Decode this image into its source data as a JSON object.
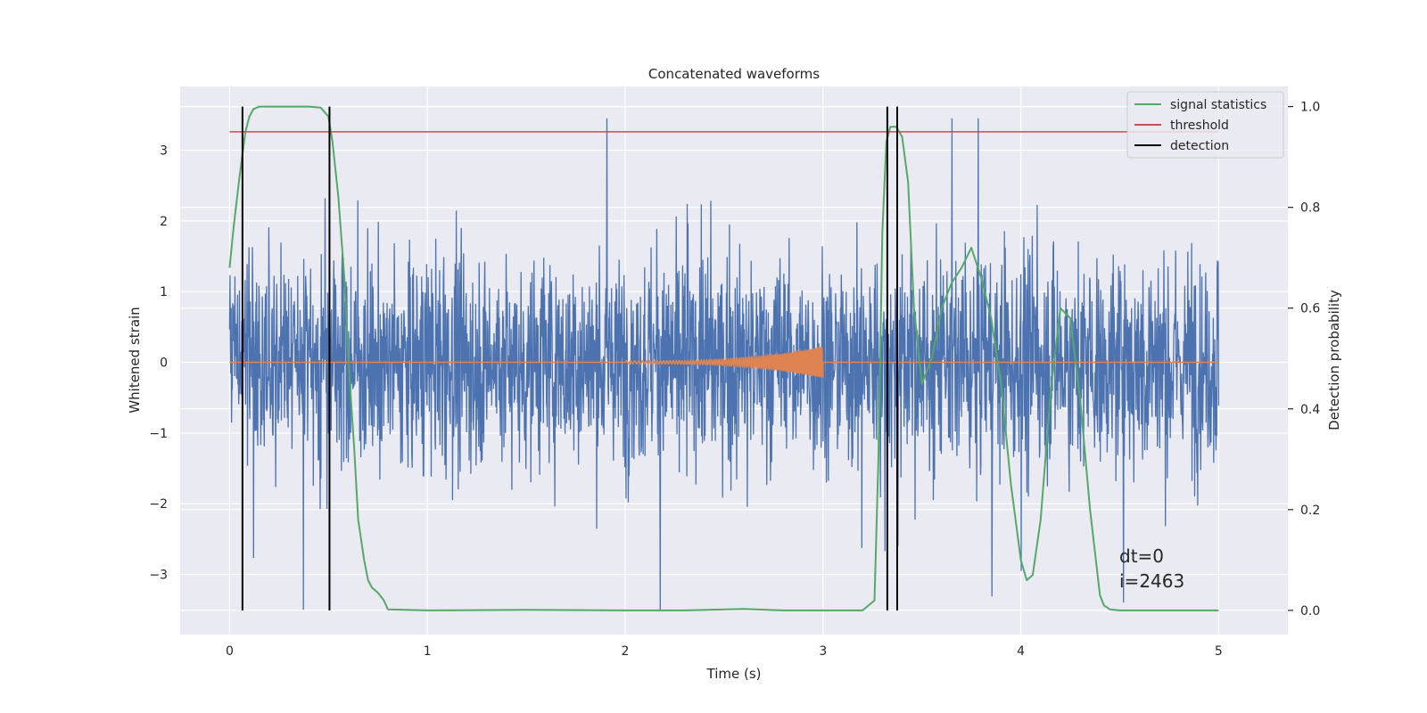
{
  "chart_data": {
    "type": "line",
    "title": "Concatenated waveforms",
    "xlabel": "Time (s)",
    "ylabel": "Whitened strain",
    "y2label": "Detection probability",
    "xlim": [
      -0.25,
      5.35
    ],
    "ylim": [
      -3.85,
      3.9
    ],
    "y2lim": [
      -0.048,
      1.04
    ],
    "xticks": [
      0,
      1,
      2,
      3,
      4,
      5
    ],
    "xtick_labels": [
      "0",
      "1",
      "2",
      "3",
      "4",
      "5"
    ],
    "yticks": [
      3,
      2,
      1,
      0,
      -1,
      -2,
      -3
    ],
    "ytick_labels": [
      "3",
      "2",
      "1",
      "0",
      "−1",
      "−2",
      "−3"
    ],
    "y2ticks": [
      1.0,
      0.8,
      0.6,
      0.4,
      0.2,
      0.0
    ],
    "y2tick_labels": [
      "1.0",
      "0.8",
      "0.6",
      "0.4",
      "0.2",
      "0.0"
    ],
    "grid": true,
    "legend_position": "top-right",
    "annotation": [
      "dt=0",
      "i=2463"
    ],
    "series": [
      {
        "id": "whitened_strain",
        "axis": "left",
        "color": "#4c72b0",
        "kind": "noise",
        "x_range": [
          0,
          5
        ],
        "std": 0.75,
        "min": -3.5,
        "max": 3.45
      },
      {
        "id": "injected_waveform",
        "axis": "left",
        "color": "#dd8452",
        "kind": "chirp",
        "x_range": [
          0,
          5
        ],
        "chirp_start": 2.0,
        "chirp_end": 3.0,
        "amplitude_start": 0.02,
        "amplitude_end": 0.22
      },
      {
        "name": "signal statistics",
        "axis": "right",
        "color": "#55a868",
        "x": [
          0.0,
          0.02,
          0.05,
          0.08,
          0.1,
          0.12,
          0.15,
          0.2,
          0.3,
          0.4,
          0.46,
          0.5,
          0.52,
          0.55,
          0.58,
          0.6,
          0.63,
          0.65,
          0.68,
          0.7,
          0.72,
          0.75,
          0.78,
          0.8,
          1.0,
          1.5,
          2.0,
          2.3,
          2.6,
          2.8,
          3.0,
          3.2,
          3.26,
          3.28,
          3.3,
          3.32,
          3.34,
          3.37,
          3.4,
          3.43,
          3.46,
          3.5,
          3.55,
          3.6,
          3.65,
          3.7,
          3.75,
          3.8,
          3.85,
          3.9,
          3.95,
          4.0,
          4.03,
          4.06,
          4.1,
          4.15,
          4.2,
          4.25,
          4.3,
          4.35,
          4.4,
          4.42,
          4.45,
          4.5,
          4.7,
          5.0
        ],
        "values": [
          0.68,
          0.76,
          0.86,
          0.95,
          0.98,
          0.995,
          1.0,
          1.0,
          1.0,
          1.0,
          0.998,
          0.98,
          0.93,
          0.82,
          0.66,
          0.5,
          0.32,
          0.18,
          0.1,
          0.06,
          0.045,
          0.035,
          0.02,
          0.002,
          0.0,
          0.001,
          0.0,
          0.0,
          0.003,
          0.0,
          0.0,
          0.0,
          0.02,
          0.3,
          0.75,
          0.93,
          0.96,
          0.96,
          0.94,
          0.85,
          0.6,
          0.45,
          0.5,
          0.6,
          0.65,
          0.68,
          0.72,
          0.66,
          0.58,
          0.45,
          0.25,
          0.1,
          0.06,
          0.07,
          0.18,
          0.43,
          0.6,
          0.58,
          0.42,
          0.2,
          0.03,
          0.01,
          0.002,
          0.0,
          0.0,
          0.0
        ]
      },
      {
        "name": "threshold",
        "axis": "right",
        "color": "#c44e52",
        "x": [
          0,
          5
        ],
        "values": [
          0.95,
          0.95
        ]
      },
      {
        "name": "detection",
        "axis": "right",
        "color": "#000000",
        "type": "vlines",
        "x": [
          0.065,
          0.505,
          3.325,
          3.375
        ],
        "range": [
          0,
          1
        ]
      }
    ]
  }
}
